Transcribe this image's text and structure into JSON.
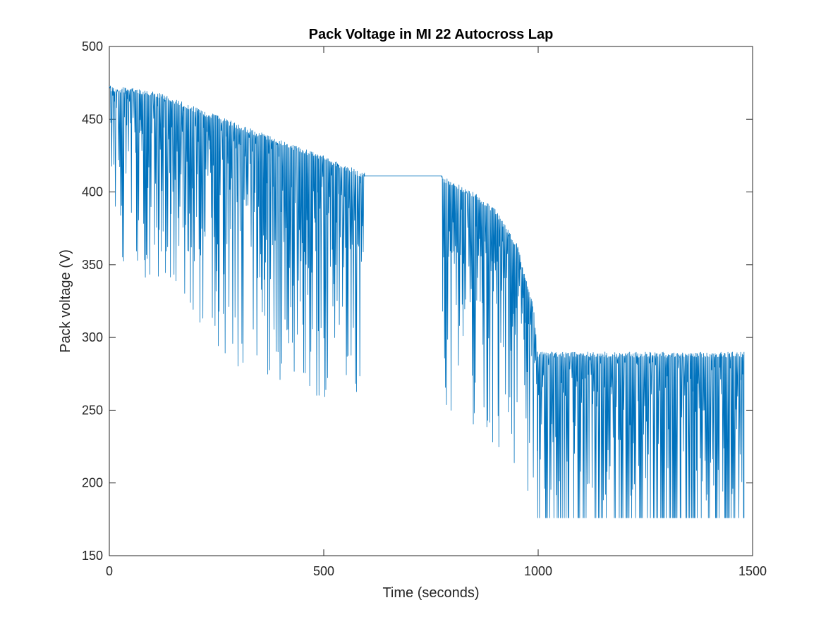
{
  "chart_data": {
    "type": "line",
    "title": "Pack Voltage in MI 22 Autocross Lap",
    "xlabel": "Time (seconds)",
    "ylabel": "Pack voltage (V)",
    "xlim": [
      0,
      1500
    ],
    "ylim": [
      150,
      500
    ],
    "xticks": [
      0,
      500,
      1000,
      1500
    ],
    "yticks": [
      150,
      200,
      250,
      300,
      350,
      400,
      450,
      500
    ],
    "xtick_labels": [
      "0",
      "500",
      "1000",
      "1500"
    ],
    "ytick_labels": [
      "150",
      "200",
      "250",
      "300",
      "350",
      "400",
      "450",
      "500"
    ],
    "grid": false,
    "box": true,
    "series": [
      {
        "name": "Pack voltage",
        "color": "#0072BD",
        "segments": [
          {
            "description": "oscillating discharge",
            "x_start": 0,
            "x_end": 595,
            "upper_envelope": [
              [
                0,
                473
              ],
              [
                100,
                470
              ],
              [
                300,
                447
              ],
              [
                500,
                425
              ],
              [
                595,
                413
              ]
            ],
            "lower_envelope": [
              [
                0,
                350
              ],
              [
                100,
                338
              ],
              [
                300,
                278
              ],
              [
                500,
                258
              ],
              [
                595,
                252
              ]
            ]
          },
          {
            "description": "flat rest",
            "x_start": 595,
            "x_end": 775,
            "value": 411
          },
          {
            "description": "oscillating discharge",
            "x_start": 775,
            "x_end": 998,
            "upper_envelope": [
              [
                775,
                411
              ],
              [
                850,
                400
              ],
              [
                900,
                388
              ],
              [
                950,
                365
              ],
              [
                990,
                320
              ],
              [
                998,
                290
              ]
            ],
            "lower_envelope": [
              [
                775,
                250
              ],
              [
                850,
                240
              ],
              [
                900,
                225
              ],
              [
                950,
                210
              ],
              [
                990,
                185
              ],
              [
                998,
                180
              ]
            ]
          },
          {
            "description": "oscillating at floor",
            "x_start": 998,
            "x_end": 1480,
            "upper_envelope": [
              [
                998,
                290
              ],
              [
                1480,
                290
              ]
            ],
            "lower_envelope": [
              [
                998,
                176
              ],
              [
                1480,
                176
              ]
            ]
          }
        ]
      }
    ]
  }
}
